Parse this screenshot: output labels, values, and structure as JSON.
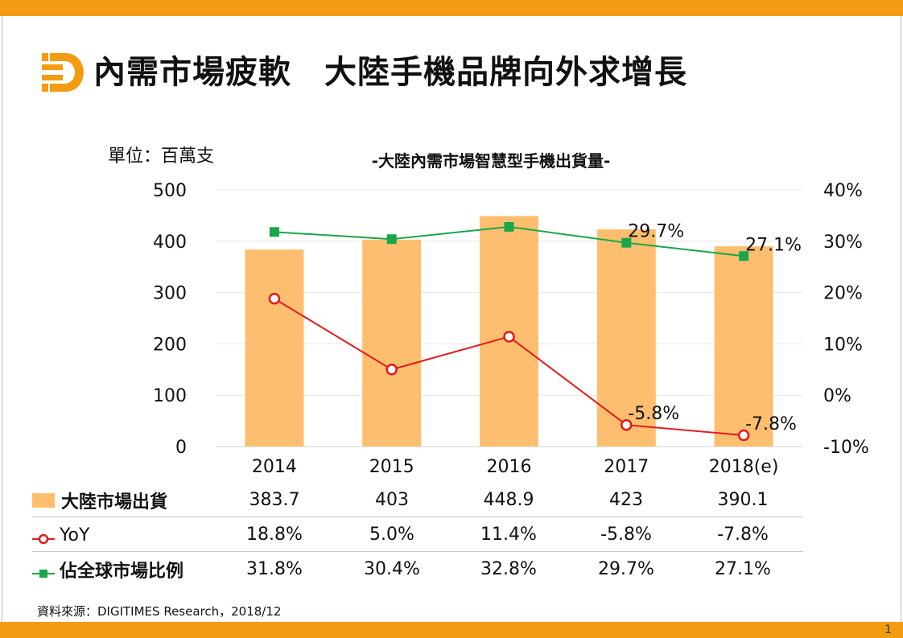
{
  "header": {
    "title": "內需市場疲軟　大陸手機品牌向外求增長",
    "logo_icon": "digitimes-d-logo"
  },
  "colors": {
    "accent": "#F39C12",
    "bar": "#FDBF6F",
    "yoy_line": "#E31A1C",
    "share_line": "#1AA64A"
  },
  "chart_data": {
    "type": "bar",
    "title": "-大陸內需市場智慧型手機出貨量-",
    "unit_label": "單位：百萬支",
    "categories": [
      "2014",
      "2015",
      "2016",
      "2017",
      "2018(e)"
    ],
    "y_left": {
      "lim": [
        0,
        500
      ],
      "ticks": [
        "0",
        "100",
        "200",
        "300",
        "400",
        "500"
      ]
    },
    "y_right": {
      "lim": [
        -10,
        40
      ],
      "ticks": [
        "-10%",
        "0%",
        "10%",
        "20%",
        "30%",
        "40%"
      ]
    },
    "grid": true,
    "series": [
      {
        "name": "大陸市場出貨",
        "kind": "bar",
        "axis": "left",
        "values": [
          383.7,
          403,
          448.9,
          423,
          390.1
        ]
      },
      {
        "name": "YoY",
        "kind": "line",
        "axis": "right",
        "marker": "open-circle",
        "values": [
          18.8,
          5.0,
          11.4,
          -5.8,
          -7.8
        ]
      },
      {
        "name": "佔全球市場比例",
        "kind": "line",
        "axis": "right",
        "marker": "square",
        "values": [
          31.8,
          30.4,
          32.8,
          29.7,
          27.1
        ]
      }
    ],
    "annotations": [
      {
        "series": "佔全球市場比例",
        "index": 3,
        "text": "29.7%"
      },
      {
        "series": "佔全球市場比例",
        "index": 4,
        "text": "27.1%"
      },
      {
        "series": "YoY",
        "index": 3,
        "text": "-5.8%"
      },
      {
        "series": "YoY",
        "index": 4,
        "text": "-7.8%"
      }
    ]
  },
  "table": {
    "rows": [
      {
        "label": "大陸市場出貨",
        "cells": [
          "383.7",
          "403",
          "448.9",
          "423",
          "390.1"
        ]
      },
      {
        "label": "YoY",
        "cells": [
          "18.8%",
          "5.0%",
          "11.4%",
          "-5.8%",
          "-7.8%"
        ]
      },
      {
        "label": "佔全球市場比例",
        "cells": [
          "31.8%",
          "30.4%",
          "32.8%",
          "29.7%",
          "27.1%"
        ]
      }
    ]
  },
  "footer": {
    "source": "資料來源：DIGITIMES Research，2018/12",
    "page_number": "1"
  }
}
